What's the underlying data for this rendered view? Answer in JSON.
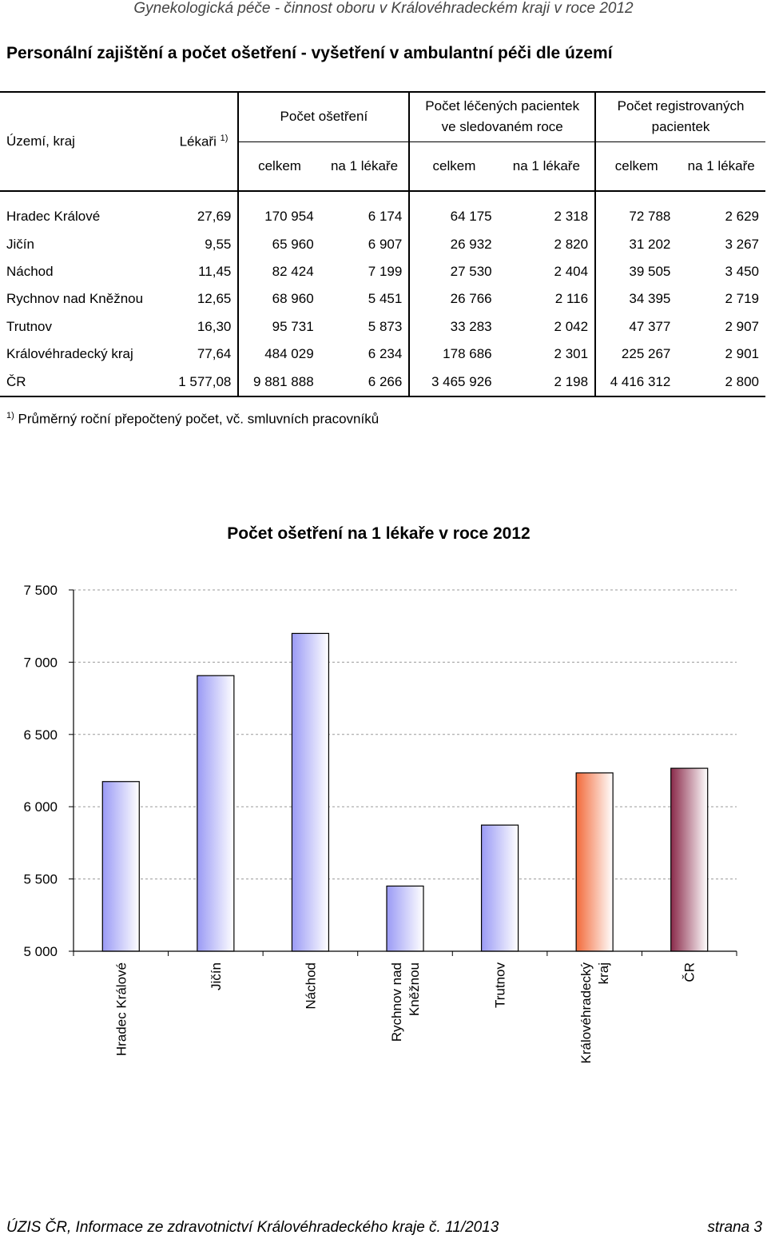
{
  "header": {
    "title": "Gynekologická péče - činnost oboru v Královéhradeckém kraji v roce 2012"
  },
  "section": {
    "title": "Personální zajištění a počet ošetření - vyšetření v ambulantní péči dle území"
  },
  "table": {
    "col_territory": "Území, kraj",
    "col_doctors": "Lékaři",
    "col_doctors_note": "1)",
    "group_treatments": "Počet ošetření",
    "group_treated_line1": "Počet léčených pacientek",
    "group_treated_line2": "ve sledovaném roce",
    "group_registered_line1": "Počet registrovaných",
    "group_registered_line2": "pacientek",
    "sub_total": "celkem",
    "sub_per_doctor": "na 1 lékaře",
    "rows": [
      [
        "Hradec Králové",
        "27,69",
        "170 954",
        "6 174",
        "64 175",
        "2 318",
        "72 788",
        "2 629"
      ],
      [
        "Jičín",
        "9,55",
        "65 960",
        "6 907",
        "26 932",
        "2 820",
        "31 202",
        "3 267"
      ],
      [
        "Náchod",
        "11,45",
        "82 424",
        "7 199",
        "27 530",
        "2 404",
        "39 505",
        "3 450"
      ],
      [
        "Rychnov nad Kněžnou",
        "12,65",
        "68 960",
        "5 451",
        "26 766",
        "2 116",
        "34 395",
        "2 719"
      ],
      [
        "Trutnov",
        "16,30",
        "95 731",
        "5 873",
        "33 283",
        "2 042",
        "47 377",
        "2 907"
      ],
      [
        "Královéhradecký kraj",
        "77,64",
        "484 029",
        "6 234",
        "178 686",
        "2 301",
        "225 267",
        "2 901"
      ],
      [
        "ČR",
        "1 577,08",
        "9 881 888",
        "6 266",
        "3 465 926",
        "2 198",
        "4 416 312",
        "2 800"
      ]
    ]
  },
  "footnote": {
    "mark": "1)",
    "text": "Průměrný roční přepočtený počet, vč. smluvních pracovníků"
  },
  "chart_data": {
    "type": "bar",
    "title": "Počet ošetření na 1 lékaře v roce 2012",
    "categories": [
      "Hradec Králové",
      "Jičín",
      "Náchod",
      "Rychnov nad Kněžnou",
      "Trutnov",
      "Královéhradecký kraj",
      "ČR"
    ],
    "category_label_lines": [
      [
        "Hradec Králové"
      ],
      [
        "Jičín"
      ],
      [
        "Náchod"
      ],
      [
        "Rychnov nad",
        "Kněžnou"
      ],
      [
        "Trutnov"
      ],
      [
        "Královéhradecký",
        "kraj"
      ],
      [
        "ČR"
      ]
    ],
    "values": [
      6174,
      6907,
      7199,
      5451,
      5873,
      6234,
      6266
    ],
    "ylim": [
      5000,
      7500
    ],
    "yticks": [
      5000,
      5500,
      6000,
      6500,
      7000,
      7500
    ],
    "ytick_labels": [
      "5 000",
      "5 500",
      "6 000",
      "6 500",
      "7 000",
      "7 500"
    ],
    "grid": true,
    "bar_colors": [
      "#9a9af5",
      "#9a9af5",
      "#9a9af5",
      "#9a9af5",
      "#9a9af5",
      "#f26a3a",
      "#8a2a4a"
    ]
  },
  "footer": {
    "left": "ÚZIS ČR, Informace ze zdravotnictví Královéhradeckého kraje č. 11/2013",
    "right": "strana 3"
  }
}
